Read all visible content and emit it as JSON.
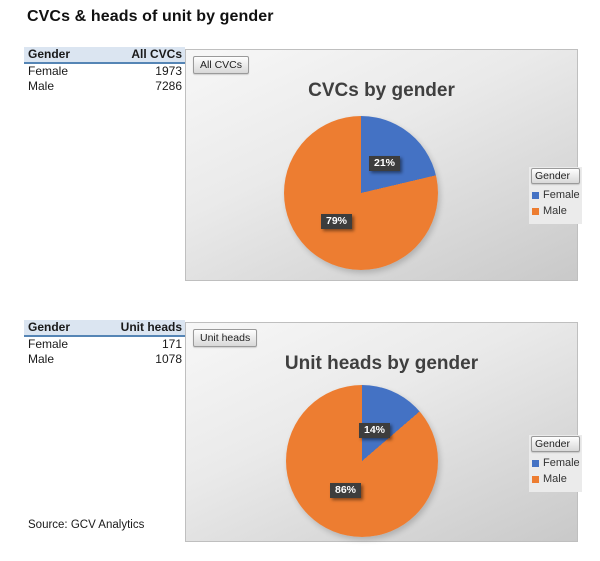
{
  "page": {
    "title": "CVCs & heads of unit by gender",
    "source": "Source: GCV Analytics"
  },
  "tables": [
    {
      "headers": [
        "Gender",
        "All CVCs"
      ],
      "rows": [
        [
          "Female",
          "1973"
        ],
        [
          "Male",
          "7286"
        ]
      ]
    },
    {
      "headers": [
        "Gender",
        "Unit heads"
      ],
      "rows": [
        [
          "Female",
          "171"
        ],
        [
          "Male",
          "1078"
        ]
      ]
    }
  ],
  "chart_data": [
    {
      "type": "pie",
      "title": "CVCs by gender",
      "filter_button": "All CVCs",
      "legend_title": "Gender",
      "legend_position": "right",
      "categories": [
        "Female",
        "Male"
      ],
      "values": [
        1973,
        7286
      ],
      "percent_labels": [
        "21%",
        "79%"
      ],
      "colors": [
        "#4472C4",
        "#ED7D31"
      ],
      "label_style": "dark-box-white-text"
    },
    {
      "type": "pie",
      "title": "Unit heads by gender",
      "filter_button": "Unit heads",
      "legend_title": "Gender",
      "legend_position": "right",
      "categories": [
        "Female",
        "Male"
      ],
      "values": [
        171,
        1078
      ],
      "percent_labels": [
        "14%",
        "86%"
      ],
      "colors": [
        "#4472C4",
        "#ED7D31"
      ],
      "label_style": "dark-box-white-text"
    }
  ]
}
